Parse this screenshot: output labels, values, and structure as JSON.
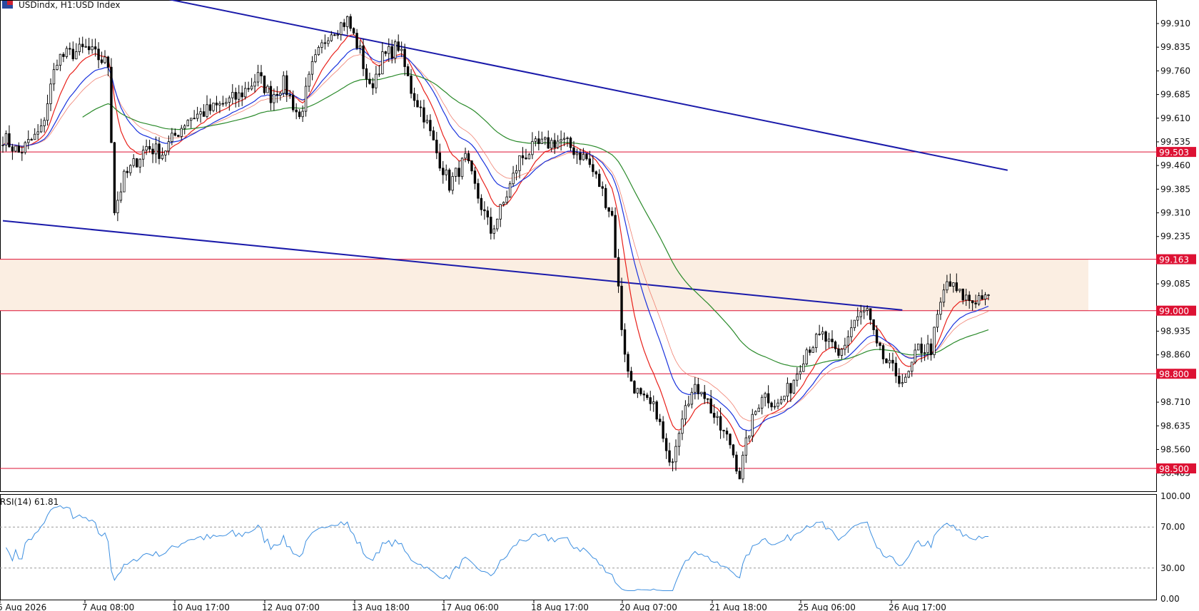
{
  "header": {
    "symbol": "USDindx, H1:",
    "description": "USD Index"
  },
  "colors": {
    "bull_candle": "#000000",
    "bear_candle": "#000000",
    "ma_fast": "#e8201a",
    "ma_slow_salmon": "#f08070",
    "ma_mid_blue": "#1a33dd",
    "ma_long_green": "#2a8a2a",
    "trendline": "#1a1aaa",
    "level_line": "#dd1133",
    "zone_fill": "#fbeee2",
    "rsi_line": "#3d8fe0",
    "rsi_levels": "#999999"
  },
  "chart_data": [
    {
      "type": "candlestick",
      "price_axis": {
        "ticks": [
          "99.910",
          "99.835",
          "99.760",
          "99.685",
          "99.610",
          "99.535",
          "99.460",
          "99.385",
          "99.310",
          "99.235",
          "99.085",
          "98.935",
          "98.860",
          "98.710",
          "98.635",
          "98.560",
          "98.485"
        ],
        "range": [
          98.43,
          99.98
        ]
      },
      "time_axis": {
        "ticks": [
          "6 Aug 2026",
          "7 Aug 08:00",
          "10 Aug 17:00",
          "12 Aug 07:00",
          "13 Aug 18:00",
          "17 Aug 06:00",
          "18 Aug 17:00",
          "20 Aug 07:00",
          "21 Aug 18:00",
          "25 Aug 06:00",
          "26 Aug 17:00"
        ],
        "bar_count": 310
      },
      "price_path": [
        [
          0,
          99.55
        ],
        [
          5,
          99.5
        ],
        [
          12,
          99.57
        ],
        [
          17,
          99.8
        ],
        [
          26,
          99.83
        ],
        [
          33,
          99.78
        ],
        [
          35,
          99.32
        ],
        [
          38,
          99.42
        ],
        [
          45,
          99.52
        ],
        [
          50,
          99.5
        ],
        [
          58,
          99.61
        ],
        [
          66,
          99.64
        ],
        [
          74,
          99.68
        ],
        [
          80,
          99.74
        ],
        [
          84,
          99.68
        ],
        [
          88,
          99.72
        ],
        [
          93,
          99.61
        ],
        [
          97,
          99.77
        ],
        [
          102,
          99.88
        ],
        [
          108,
          99.92
        ],
        [
          112,
          99.82
        ],
        [
          115,
          99.7
        ],
        [
          119,
          99.8
        ],
        [
          124,
          99.84
        ],
        [
          128,
          99.7
        ],
        [
          132,
          99.62
        ],
        [
          136,
          99.5
        ],
        [
          140,
          99.4
        ],
        [
          145,
          99.48
        ],
        [
          149,
          99.36
        ],
        [
          153,
          99.25
        ],
        [
          157,
          99.34
        ],
        [
          162,
          99.48
        ],
        [
          167,
          99.52
        ],
        [
          175,
          99.54
        ],
        [
          183,
          99.48
        ],
        [
          187,
          99.4
        ],
        [
          191,
          99.3
        ],
        [
          194,
          98.95
        ],
        [
          196,
          98.8
        ],
        [
          200,
          98.72
        ],
        [
          205,
          98.68
        ],
        [
          209,
          98.5
        ],
        [
          214,
          98.72
        ],
        [
          219,
          98.76
        ],
        [
          224,
          98.64
        ],
        [
          228,
          98.58
        ],
        [
          231,
          98.48
        ],
        [
          234,
          98.62
        ],
        [
          238,
          98.74
        ],
        [
          243,
          98.7
        ],
        [
          247,
          98.76
        ],
        [
          252,
          98.88
        ],
        [
          257,
          98.92
        ],
        [
          262,
          98.85
        ],
        [
          267,
          98.97
        ],
        [
          271,
          99.0
        ],
        [
          274,
          98.88
        ],
        [
          278,
          98.82
        ],
        [
          283,
          98.77
        ],
        [
          287,
          98.88
        ],
        [
          291,
          98.88
        ],
        [
          294,
          99.02
        ],
        [
          296,
          99.09
        ],
        [
          300,
          99.05
        ],
        [
          304,
          99.03
        ],
        [
          307,
          99.05
        ]
      ],
      "levels": [
        {
          "price": 99.503,
          "label": "99.503"
        },
        {
          "price": 99.163,
          "label": "99.163"
        },
        {
          "price": 99.0,
          "label": "99.000"
        },
        {
          "price": 98.8,
          "label": "98.800"
        },
        {
          "price": 98.5,
          "label": "98.500"
        }
      ],
      "zone": {
        "from": 99.0,
        "to": 99.163
      },
      "trendlines": [
        {
          "from": [
            48,
            99.995
          ],
          "to": [
            315,
            99.445
          ]
        },
        {
          "from": [
            0,
            99.285
          ],
          "to": [
            282,
            99.002
          ]
        }
      ]
    },
    {
      "type": "line",
      "title": "RSI(14) 61.81",
      "range": [
        0,
        100
      ],
      "ticks": [
        "100.00",
        "70.00",
        "30.00",
        "0.00"
      ],
      "levels": [
        70,
        30
      ]
    }
  ]
}
